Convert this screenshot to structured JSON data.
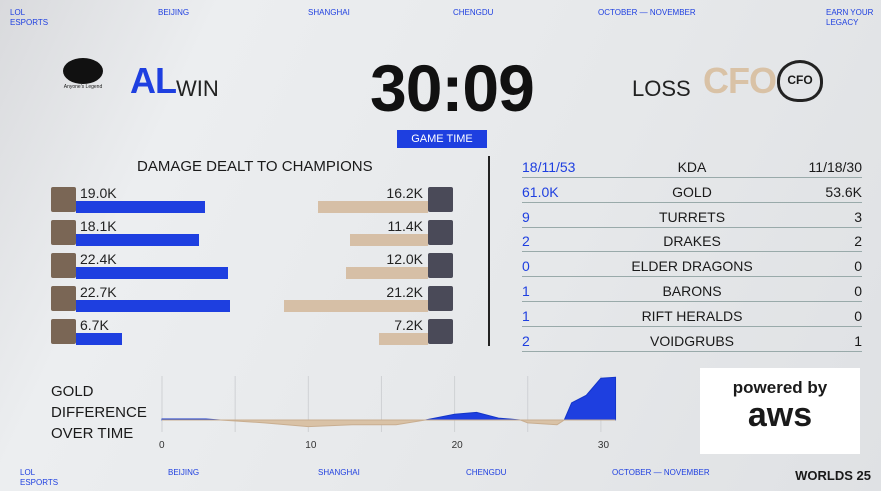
{
  "nav_top": [
    "LOL\nESPORTS",
    "BEIJING",
    "SHANGHAI",
    "CHENGDU",
    "OCTOBER — NOVEMBER",
    "EARN YOUR\nLEGACY"
  ],
  "nav_bottom": [
    "LOL\nESPORTS",
    "BEIJING",
    "SHANGHAI",
    "CHENGDU",
    "OCTOBER — NOVEMBER"
  ],
  "logo_bottom": "WORLDS 25",
  "left_team": {
    "logo_text": "Anyone's Legend",
    "name": "AL",
    "result": "WIN",
    "color": "#1e3fe0"
  },
  "right_team": {
    "logo_text": "CFO",
    "name": "CFO",
    "result": "LOSS",
    "color": "#d9c2a6"
  },
  "timer": "30:09",
  "game_time_label": "GAME TIME",
  "damage": {
    "title": "DAMAGE DEALT TO CHAMPIONS",
    "left": [
      {
        "label": "19.0K",
        "value": 19.0
      },
      {
        "label": "18.1K",
        "value": 18.1
      },
      {
        "label": "22.4K",
        "value": 22.4
      },
      {
        "label": "22.7K",
        "value": 22.7
      },
      {
        "label": "6.7K",
        "value": 6.7
      }
    ],
    "right": [
      {
        "label": "16.2K",
        "value": 16.2
      },
      {
        "label": "11.4K",
        "value": 11.4
      },
      {
        "label": "12.0K",
        "value": 12.0
      },
      {
        "label": "21.2K",
        "value": 21.2
      },
      {
        "label": "7.2K",
        "value": 7.2
      }
    ]
  },
  "stats": [
    {
      "left": "18/11/53",
      "name": "KDA",
      "right": "11/18/30"
    },
    {
      "left": "61.0K",
      "name": "GOLD",
      "right": "53.6K"
    },
    {
      "left": "9",
      "name": "TURRETS",
      "right": "3"
    },
    {
      "left": "2",
      "name": "DRAKES",
      "right": "2"
    },
    {
      "left": "0",
      "name": "ELDER DRAGONS",
      "right": "0"
    },
    {
      "left": "1",
      "name": "BARONS",
      "right": "0"
    },
    {
      "left": "1",
      "name": "RIFT HERALDS",
      "right": "0"
    },
    {
      "left": "2",
      "name": "VOIDGRUBS",
      "right": "1"
    }
  ],
  "gold_chart": {
    "title": "GOLD DIFFERENCE OVER TIME",
    "x_ticks": [
      "0",
      "10",
      "20",
      "30"
    ],
    "chart_data": {
      "type": "area",
      "x": [
        0,
        3,
        4,
        7,
        10,
        13,
        16,
        18,
        20,
        21.5,
        23,
        24.5,
        25,
        27,
        27.5,
        28,
        29,
        30,
        31
      ],
      "y": [
        0.5,
        0.5,
        0,
        -1.5,
        -3.5,
        -2.5,
        -2.5,
        0,
        3,
        4,
        1,
        0,
        -1.5,
        -2.5,
        0,
        9,
        13,
        22,
        22.5
      ],
      "xlim": [
        0,
        31
      ]
    }
  },
  "sponsor": {
    "line1": "powered by",
    "line2": "aws"
  }
}
